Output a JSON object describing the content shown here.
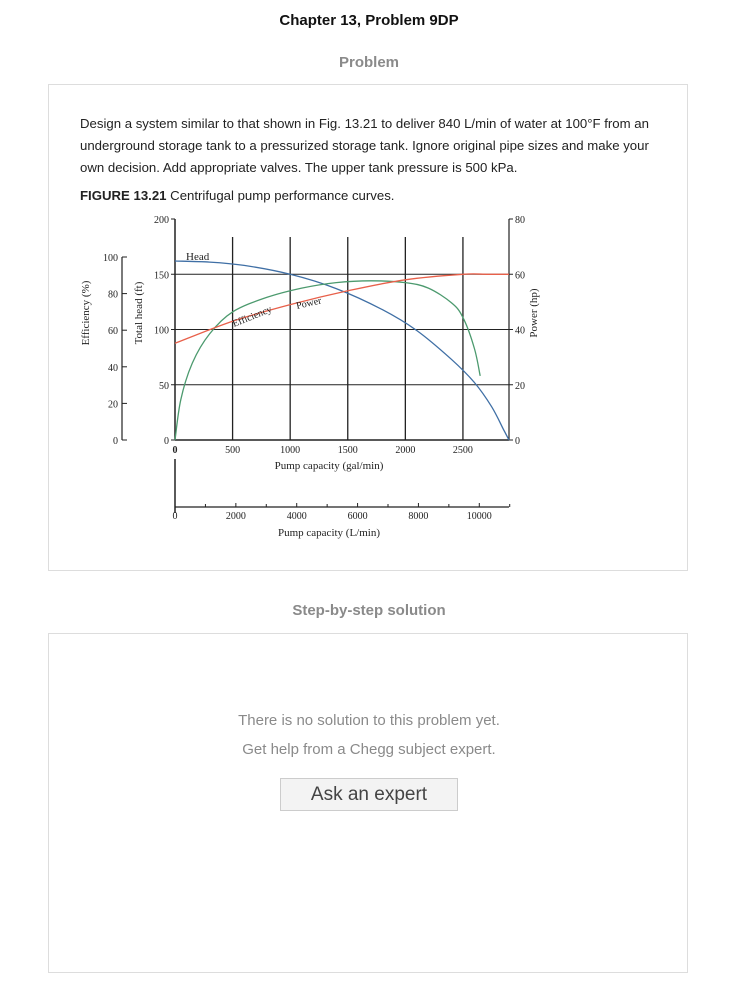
{
  "page": {
    "title": "Chapter 13, Problem 9DP"
  },
  "problem": {
    "heading": "Problem",
    "text": "Design a system similar to that shown in Fig. 13.21 to deliver 840 L/min of water at 100°F from an underground storage tank to a pressurized storage tank. Ignore original pipe sizes and make your own decision. Add appropriate valves. The upper tank pressure is 500 kPa.",
    "figure_label": "FIGURE 13.21",
    "figure_caption": " Centrifugal pump performance curves."
  },
  "solution": {
    "heading": "Step-by-step solution",
    "no_solution_line1": "There is no solution to this problem yet.",
    "no_solution_line2": "Get help from a Chegg subject expert.",
    "ask_button": "Ask an expert"
  },
  "colors": {
    "head": "#3f6fa5",
    "efficiency": "#4c9a6e",
    "power": "#e8604a"
  },
  "chart_data": {
    "type": "line",
    "xlabel": "Pump capacity (gal/min)",
    "x2label": "Pump capacity (L/min)",
    "ylabel_left_outer": "Efficiency (%)",
    "ylabel_left_inner": "Total head (ft)",
    "ylabel_right": "Power (hp)",
    "xlim": [
      0,
      2900
    ],
    "x_ticks": [
      "0",
      "500",
      "1000",
      "1500",
      "2000",
      "2500"
    ],
    "x2_ticks": [
      "0",
      "2000",
      "4000",
      "6000",
      "8000",
      "10000"
    ],
    "head_ticks": [
      "0",
      "50",
      "100",
      "150",
      "200"
    ],
    "efficiency_ticks": [
      "0",
      "20",
      "40",
      "60",
      "80",
      "100"
    ],
    "power_ticks": [
      "0",
      "20",
      "40",
      "60",
      "80"
    ],
    "series": [
      {
        "name": "Head",
        "axis": "head_ft",
        "x": [
          0,
          300,
          600,
          1000,
          1400,
          1800,
          2100,
          2400,
          2600,
          2750,
          2850,
          2900
        ],
        "y": [
          162,
          161,
          158,
          150,
          137,
          118,
          99,
          73,
          52,
          30,
          10,
          0
        ]
      },
      {
        "name": "Efficiency",
        "axis": "efficiency_pct",
        "x": [
          0,
          50,
          150,
          300,
          500,
          800,
          1100,
          1400,
          1700,
          2000,
          2200,
          2400,
          2500,
          2600,
          2650
        ],
        "y": [
          0,
          22,
          42,
          58,
          70,
          78,
          83,
          86,
          87,
          86,
          83,
          75,
          67,
          50,
          35
        ]
      },
      {
        "name": "Power",
        "axis": "power_hp",
        "x": [
          0,
          500,
          1000,
          1500,
          2000,
          2500,
          2700,
          2900
        ],
        "y": [
          35,
          43,
          49,
          54,
          58,
          60,
          60,
          60
        ]
      }
    ]
  }
}
